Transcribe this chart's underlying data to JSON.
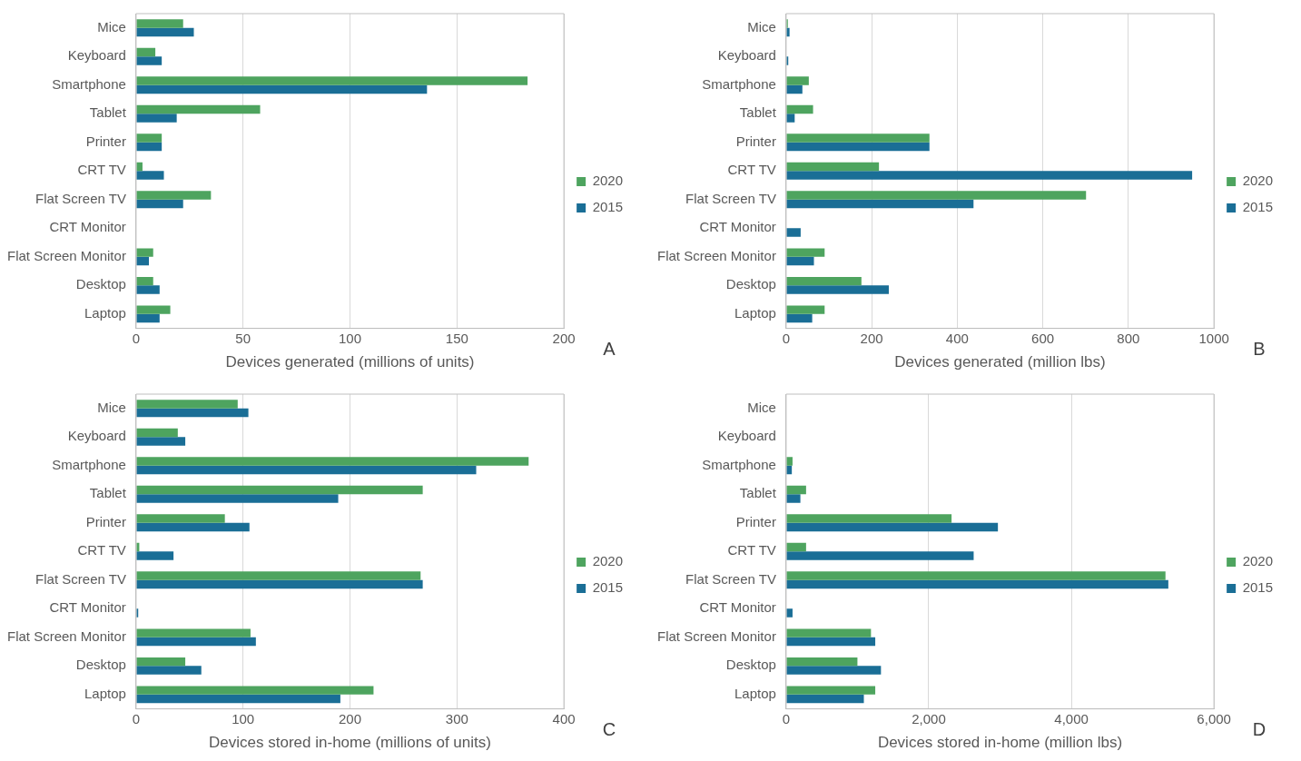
{
  "chart_data": [
    {
      "type": "bar",
      "orientation": "horizontal",
      "categories": [
        "Mice",
        "Keyboard",
        "Smartphone",
        "Tablet",
        "Printer",
        "CRT TV",
        "Flat Screen TV",
        "CRT Monitor",
        "Flat Screen Monitor",
        "Desktop",
        "Laptop"
      ],
      "series": [
        {
          "name": "2020",
          "color": "#4ea45f",
          "values": [
            22,
            9,
            183,
            58,
            12,
            3,
            35,
            0,
            8,
            8,
            16
          ]
        },
        {
          "name": "2015",
          "color": "#1a6e96",
          "values": [
            27,
            12,
            136,
            19,
            12,
            13,
            22,
            null,
            6,
            11,
            11
          ]
        }
      ],
      "xlabel": "Devices generated (millions of units)",
      "xlim": [
        0,
        200
      ],
      "xticks": [
        0,
        50,
        100,
        150,
        200
      ],
      "grid": "x",
      "legend": "right",
      "annotations": [
        "A"
      ]
    },
    {
      "type": "bar",
      "orientation": "horizontal",
      "categories": [
        "Mice",
        "Keyboard",
        "Smartphone",
        "Tablet",
        "Printer",
        "CRT TV",
        "Flat Screen TV",
        "CRT Monitor",
        "Flat Screen Monitor",
        "Desktop",
        "Laptop"
      ],
      "series": [
        {
          "name": "2020",
          "color": "#4ea45f",
          "values": [
            4,
            null,
            53,
            63,
            335,
            217,
            701,
            0,
            90,
            176,
            90
          ]
        },
        {
          "name": "2015",
          "color": "#1a6e96",
          "values": [
            8,
            5,
            38,
            20,
            335,
            949,
            438,
            34,
            65,
            240,
            61
          ]
        }
      ],
      "xlabel": "Devices generated (million lbs)",
      "xlim": [
        0,
        1000
      ],
      "xticks": [
        0,
        200,
        400,
        600,
        800,
        1000
      ],
      "grid": "x",
      "legend": "right",
      "annotations": [
        "B"
      ]
    },
    {
      "type": "bar",
      "orientation": "horizontal",
      "categories": [
        "Mice",
        "Keyboard",
        "Smartphone",
        "Tablet",
        "Printer",
        "CRT TV",
        "Flat Screen TV",
        "CRT Monitor",
        "Flat Screen Monitor",
        "Desktop",
        "Laptop"
      ],
      "series": [
        {
          "name": "2020",
          "color": "#4ea45f",
          "values": [
            95,
            39,
            367,
            268,
            83,
            3,
            266,
            0,
            107,
            46,
            222
          ]
        },
        {
          "name": "2015",
          "color": "#1a6e96",
          "values": [
            105,
            46,
            318,
            189,
            106,
            35,
            268,
            2,
            112,
            61,
            191
          ]
        }
      ],
      "xlabel": "Devices stored in-home (millions of units)",
      "xlim": [
        0,
        400
      ],
      "xticks": [
        0,
        100,
        200,
        300,
        400
      ],
      "grid": "x",
      "legend": "right",
      "annotations": [
        "C"
      ]
    },
    {
      "type": "bar",
      "orientation": "horizontal",
      "categories": [
        "Mice",
        "Keyboard",
        "Smartphone",
        "Tablet",
        "Printer",
        "CRT TV",
        "Flat Screen TV",
        "CRT Monitor",
        "Flat Screen Monitor",
        "Desktop",
        "Laptop"
      ],
      "series": [
        {
          "name": "2020",
          "color": "#4ea45f",
          "values": [
            null,
            0,
            90,
            280,
            2320,
            280,
            5320,
            0,
            1190,
            1000,
            1250
          ]
        },
        {
          "name": "2015",
          "color": "#1a6e96",
          "values": [
            null,
            0,
            80,
            200,
            2970,
            2630,
            5360,
            90,
            1250,
            1330,
            1090
          ]
        }
      ],
      "xlabel": "Devices stored in-home (million lbs)",
      "xlim": [
        0,
        6000
      ],
      "xticks": [
        0,
        {
          "value": 2000,
          "label": "2,000"
        },
        {
          "value": 4000,
          "label": "4,000"
        },
        {
          "value": 6000,
          "label": "6,000"
        }
      ],
      "grid": "x",
      "legend": "right",
      "annotations": [
        "D"
      ]
    }
  ]
}
